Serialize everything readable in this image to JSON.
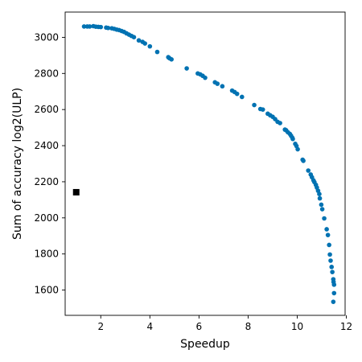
{
  "chart_data": {
    "type": "scatter",
    "title": "",
    "xlabel": "Speedup",
    "ylabel": "Sum of accuracy log2(ULP)",
    "xlim": [
      0.55,
      11.95
    ],
    "ylim": [
      1460,
      3140
    ],
    "xticks": [
      2,
      4,
      6,
      8,
      10,
      12
    ],
    "yticks": [
      1600,
      1800,
      2000,
      2200,
      2400,
      2600,
      2800,
      3000
    ],
    "grid": false,
    "series": [
      {
        "marker": "circle",
        "color": "#0072b2",
        "points": [
          [
            1.32,
            3060
          ],
          [
            1.45,
            3060
          ],
          [
            1.55,
            3060
          ],
          [
            1.7,
            3062
          ],
          [
            1.8,
            3059
          ],
          [
            1.9,
            3058
          ],
          [
            2.0,
            3057
          ],
          [
            2.22,
            3054
          ],
          [
            2.3,
            3052
          ],
          [
            2.45,
            3050
          ],
          [
            2.55,
            3047
          ],
          [
            2.65,
            3043
          ],
          [
            2.75,
            3040
          ],
          [
            2.85,
            3035
          ],
          [
            2.95,
            3030
          ],
          [
            3.05,
            3022
          ],
          [
            3.15,
            3015
          ],
          [
            3.25,
            3008
          ],
          [
            3.35,
            3001
          ],
          [
            3.55,
            2983
          ],
          [
            3.7,
            2975
          ],
          [
            3.8,
            2966
          ],
          [
            4.0,
            2950
          ],
          [
            4.3,
            2919
          ],
          [
            4.75,
            2890
          ],
          [
            4.8,
            2884
          ],
          [
            4.88,
            2878
          ],
          [
            5.5,
            2828
          ],
          [
            5.95,
            2800
          ],
          [
            6.05,
            2795
          ],
          [
            6.15,
            2787
          ],
          [
            6.25,
            2776
          ],
          [
            6.65,
            2751
          ],
          [
            6.75,
            2743
          ],
          [
            6.95,
            2729
          ],
          [
            7.35,
            2705
          ],
          [
            7.45,
            2697
          ],
          [
            7.55,
            2687
          ],
          [
            7.75,
            2670
          ],
          [
            8.25,
            2625
          ],
          [
            8.5,
            2603
          ],
          [
            8.6,
            2600
          ],
          [
            8.8,
            2577
          ],
          [
            8.9,
            2568
          ],
          [
            9.0,
            2560
          ],
          [
            9.1,
            2547
          ],
          [
            9.2,
            2532
          ],
          [
            9.3,
            2525
          ],
          [
            9.5,
            2489
          ],
          [
            9.55,
            2485
          ],
          [
            9.62,
            2474
          ],
          [
            9.7,
            2465
          ],
          [
            9.75,
            2455
          ],
          [
            9.8,
            2444
          ],
          [
            9.82,
            2437
          ],
          [
            9.92,
            2410
          ],
          [
            9.97,
            2398
          ],
          [
            10.02,
            2380
          ],
          [
            10.22,
            2322
          ],
          [
            10.25,
            2316
          ],
          [
            10.45,
            2262
          ],
          [
            10.55,
            2240
          ],
          [
            10.6,
            2225
          ],
          [
            10.66,
            2208
          ],
          [
            10.7,
            2198
          ],
          [
            10.76,
            2183
          ],
          [
            10.8,
            2168
          ],
          [
            10.85,
            2150
          ],
          [
            10.9,
            2132
          ],
          [
            10.92,
            2108
          ],
          [
            10.98,
            2073
          ],
          [
            11.02,
            2048
          ],
          [
            11.1,
            1997
          ],
          [
            11.2,
            1937
          ],
          [
            11.25,
            1905
          ],
          [
            11.3,
            1850
          ],
          [
            11.33,
            1797
          ],
          [
            11.36,
            1763
          ],
          [
            11.4,
            1728
          ],
          [
            11.43,
            1700
          ],
          [
            11.47,
            1660
          ],
          [
            11.48,
            1645
          ],
          [
            11.5,
            1630
          ],
          [
            11.5,
            1583
          ],
          [
            11.47,
            1535
          ]
        ]
      },
      {
        "marker": "square",
        "color": "#000000",
        "points": [
          [
            1.0,
            2142
          ]
        ]
      }
    ]
  }
}
